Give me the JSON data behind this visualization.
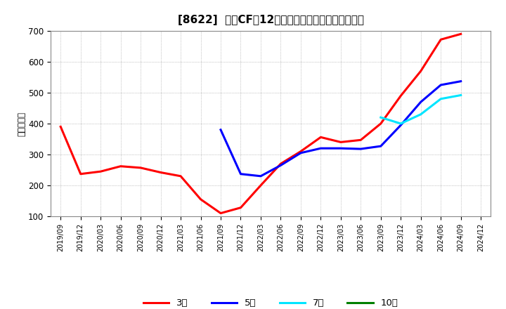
{
  "title": "[8622]  投賄CFの12か月移動合計の標準偏差の推移",
  "ylabel": "（百万円）",
  "ylim": [
    100,
    700
  ],
  "yticks": [
    100,
    200,
    300,
    400,
    500,
    600,
    700
  ],
  "background_color": "#ffffff",
  "plot_bg_color": "#ffffff",
  "grid_color": "#999999",
  "series": {
    "3年": {
      "color": "#ff0000",
      "data": [
        [
          "2019/09",
          390
        ],
        [
          "2019/12",
          237
        ],
        [
          "2020/03",
          245
        ],
        [
          "2020/06",
          262
        ],
        [
          "2020/09",
          257
        ],
        [
          "2020/12",
          242
        ],
        [
          "2021/03",
          230
        ],
        [
          "2021/06",
          155
        ],
        [
          "2021/09",
          110
        ],
        [
          "2021/12",
          128
        ],
        [
          "2022/03",
          200
        ],
        [
          "2022/06",
          270
        ],
        [
          "2022/09",
          310
        ],
        [
          "2022/12",
          356
        ],
        [
          "2023/03",
          340
        ],
        [
          "2023/06",
          347
        ],
        [
          "2023/09",
          400
        ],
        [
          "2023/12",
          490
        ],
        [
          "2024/03",
          570
        ],
        [
          "2024/06",
          672
        ],
        [
          "2024/09",
          690
        ]
      ]
    },
    "5年": {
      "color": "#0000ff",
      "data": [
        [
          "2021/09",
          380
        ],
        [
          "2021/12",
          237
        ],
        [
          "2022/03",
          230
        ],
        [
          "2022/06",
          265
        ],
        [
          "2022/09",
          305
        ],
        [
          "2022/12",
          320
        ],
        [
          "2023/03",
          320
        ],
        [
          "2023/06",
          318
        ],
        [
          "2023/09",
          327
        ],
        [
          "2023/12",
          395
        ],
        [
          "2024/03",
          470
        ],
        [
          "2024/06",
          525
        ],
        [
          "2024/09",
          537
        ]
      ]
    },
    "7年": {
      "color": "#00e5ff",
      "data": [
        [
          "2023/09",
          420
        ],
        [
          "2023/12",
          400
        ],
        [
          "2024/03",
          430
        ],
        [
          "2024/06",
          480
        ],
        [
          "2024/09",
          492
        ]
      ]
    },
    "10年": {
      "color": "#008000",
      "data": []
    }
  },
  "legend": [
    {
      "label": "3年",
      "color": "#ff0000"
    },
    {
      "label": "5年",
      "color": "#0000ff"
    },
    {
      "label": "7年",
      "color": "#00e5ff"
    },
    {
      "label": "10年",
      "color": "#008000"
    }
  ],
  "xtick_labels": [
    "2019/09",
    "2019/12",
    "2020/03",
    "2020/06",
    "2020/09",
    "2020/12",
    "2021/03",
    "2021/06",
    "2021/09",
    "2021/12",
    "2022/03",
    "2022/06",
    "2022/09",
    "2022/12",
    "2023/03",
    "2023/06",
    "2023/09",
    "2023/12",
    "2024/03",
    "2024/06",
    "2024/09",
    "2024/12"
  ]
}
